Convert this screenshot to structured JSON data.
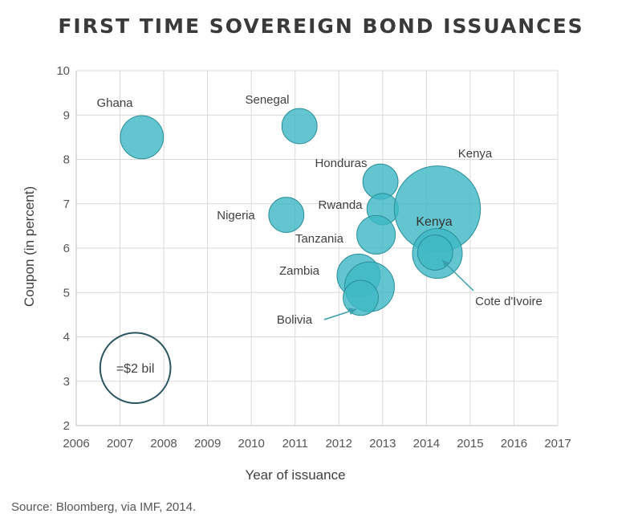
{
  "title": "FIRST TIME SOVEREIGN BOND ISSUANCES",
  "source": "Source: Bloomberg, via IMF, 2014.",
  "chart_data": {
    "type": "scatter",
    "subtype": "bubble",
    "xlabel": "Year of issuance",
    "ylabel": "Coupon (in percent)",
    "xlim": [
      2006,
      2017
    ],
    "ylim": [
      2,
      10
    ],
    "xticks": [
      2006,
      2007,
      2008,
      2009,
      2010,
      2011,
      2012,
      2013,
      2014,
      2015,
      2016,
      2017
    ],
    "yticks": [
      2,
      3,
      4,
      5,
      6,
      7,
      8,
      9,
      10
    ],
    "grid": true,
    "bubble_color": "#3fb8c4",
    "bubble_edge": "#2a8f99",
    "points": [
      {
        "label": "Ghana",
        "x": 2007.5,
        "y": 8.5,
        "size_bil": 0.75
      },
      {
        "label": "Senegal",
        "x": 2011.1,
        "y": 8.75,
        "size_bil": 0.5
      },
      {
        "label": "Honduras",
        "x": 2012.95,
        "y": 7.5,
        "size_bil": 0.5
      },
      {
        "label": "Nigeria",
        "x": 2010.8,
        "y": 6.75,
        "size_bil": 0.5
      },
      {
        "label": "Rwanda",
        "x": 2013.0,
        "y": 6.88,
        "size_bil": 0.4
      },
      {
        "label": "Kenya",
        "x": 2014.25,
        "y": 6.88,
        "size_bil": 3.0
      },
      {
        "label": "Tanzania",
        "x": 2012.85,
        "y": 6.3,
        "size_bil": 0.6
      },
      {
        "label": "Kenya",
        "x": 2014.25,
        "y": 5.88,
        "size_bil": 1.0
      },
      {
        "label": "Cote d'Ivoire",
        "x": 2014.2,
        "y": 5.9,
        "size_bil": 0.5
      },
      {
        "label": "Zambia",
        "x": 2012.45,
        "y": 5.38,
        "size_bil": 0.75
      },
      {
        "label": "Zambia",
        "x": 2012.7,
        "y": 5.13,
        "size_bil": 1.0
      },
      {
        "label": "Bolivia",
        "x": 2012.5,
        "y": 4.88,
        "size_bil": 0.5
      }
    ],
    "labels": [
      "Ghana",
      "Senegal",
      "Honduras",
      "Kenya",
      "Nigeria",
      "Rwanda",
      "Kenya",
      "Tanzania",
      "Zambia",
      "Bolivia",
      "Cote d'Ivoire"
    ],
    "size_legend": {
      "label": "=$2 bil",
      "size_bil": 2,
      "x": 2007.35,
      "y": 3.3,
      "edge_color": "#2b5560"
    }
  }
}
